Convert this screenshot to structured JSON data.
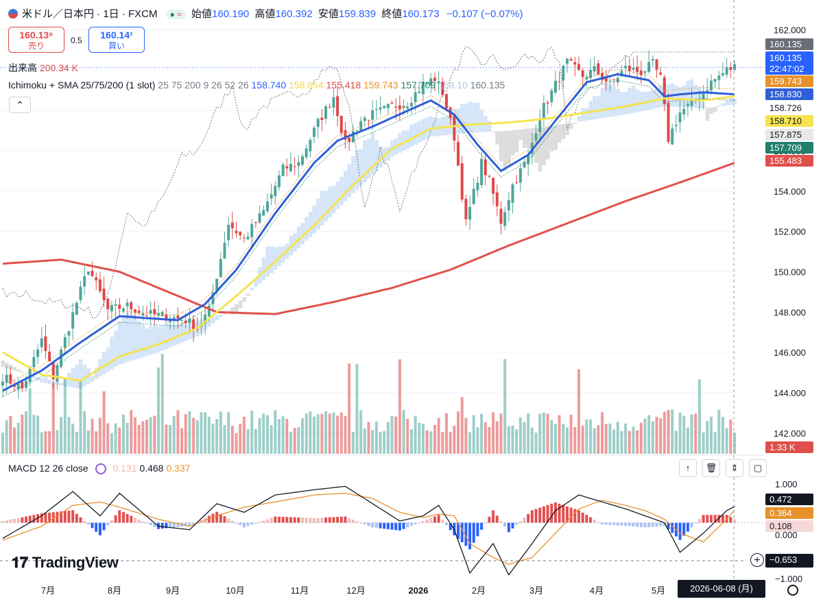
{
  "header": {
    "symbol": "米ドル／日本円 · 1日 · FXCM",
    "open_label": "始値",
    "open": "160.190",
    "high_label": "高値",
    "high": "160.392",
    "low_label": "安値",
    "low": "159.839",
    "close_label": "終値",
    "close": "160.173",
    "change": "−0.107 (−0.07%)"
  },
  "quote": {
    "sell_price": "160.13⁶",
    "sell_label": "売り",
    "spread": "0.5",
    "buy_price": "160.14¹",
    "buy_label": "買い"
  },
  "volume_legend": {
    "label": "出来高",
    "value": "200.34 K"
  },
  "indicator_legend": {
    "name": "Ichimoku + SMA 25/75/200 (1 slot)",
    "params": "25 75 200 9 26 52 26",
    "sma25": "158.740",
    "sma75": "158.654",
    "sma200": "155.418",
    "tenkan": "159.743",
    "kijun": "157.709",
    "spanA": "158.10",
    "chikou": "160.135"
  },
  "macd_legend": {
    "name": "MACD 12 26 close",
    "hist": "0.131",
    "macd": "0.468",
    "signal": "0.337"
  },
  "branding": {
    "logo": "TradingView"
  },
  "time_badge": "2026-06-08 (月)",
  "badges": {
    "last": "160.135",
    "price": "160.135",
    "countdown": "22:47:02",
    "tenkan": "159.743",
    "sma25": "158.830",
    "spanB": "158.726",
    "sma75": "158.710",
    "spanA": "157.875",
    "kijun": "157.709",
    "sma200": "155.483",
    "volume": "1.33 K",
    "macd": "0.472",
    "signal": "0.364",
    "hist": "0.108",
    "cross": "−0.653"
  },
  "colors": {
    "up": "#4ea69a",
    "down": "#e04848",
    "sma25": "#2f5fd8",
    "sma75": "#f5e34f",
    "sma200": "#e0504a",
    "tenkan": "#e8912b",
    "kijun": "#22806b",
    "cloud_up": "#cfe2f7",
    "cloud_dn": "#d8d8d8"
  },
  "chart_data": {
    "type": "candlestick",
    "title": "",
    "x_ticks": [
      "7月",
      "8月",
      "9月",
      "10月",
      "11月",
      "12月",
      "2026",
      "2月",
      "3月",
      "4月",
      "5月"
    ],
    "y_ticks": [
      "162.000",
      "160.000",
      "158.000",
      "156.000",
      "154.000",
      "152.000",
      "150.000",
      "148.000",
      "146.000",
      "144.000",
      "142.000"
    ],
    "ylim": [
      140.7,
      162.8
    ],
    "close_path": [
      [
        0,
        144.8
      ],
      [
        5,
        144.2
      ],
      [
        10,
        146.6
      ],
      [
        13,
        144.8
      ],
      [
        18,
        147.9
      ],
      [
        22,
        150.2
      ],
      [
        27,
        148.1
      ],
      [
        32,
        148.3
      ],
      [
        37,
        147.9
      ],
      [
        42,
        147.8
      ],
      [
        47,
        147.6
      ],
      [
        50,
        147.2
      ],
      [
        53,
        148.1
      ],
      [
        58,
        152.4
      ],
      [
        62,
        151.6
      ],
      [
        67,
        153.0
      ],
      [
        72,
        155.1
      ],
      [
        76,
        155.4
      ],
      [
        81,
        157.4
      ],
      [
        85,
        158.7
      ],
      [
        88,
        156.3
      ],
      [
        92,
        157.5
      ],
      [
        95,
        157.8
      ],
      [
        100,
        158.2
      ],
      [
        104,
        158.4
      ],
      [
        108,
        159.3
      ],
      [
        111,
        159.6
      ],
      [
        113,
        158.9
      ],
      [
        116,
        156.7
      ],
      [
        119,
        152.4
      ],
      [
        123,
        155.4
      ],
      [
        125,
        154.5
      ],
      [
        128,
        152.5
      ],
      [
        131,
        154.3
      ],
      [
        135,
        155.7
      ],
      [
        138,
        157.8
      ],
      [
        141,
        158.9
      ],
      [
        145,
        160.4
      ],
      [
        149,
        159.7
      ],
      [
        152,
        160.0
      ],
      [
        156,
        159.3
      ],
      [
        160,
        160.1
      ],
      [
        164,
        159.9
      ],
      [
        167,
        160.3
      ],
      [
        169,
        159.6
      ],
      [
        171,
        156.6
      ],
      [
        174,
        157.9
      ],
      [
        178,
        158.5
      ],
      [
        182,
        159.4
      ],
      [
        186,
        160.0
      ],
      [
        188,
        160.17
      ]
    ],
    "sma25_path": [
      [
        0,
        144.1
      ],
      [
        10,
        145.1
      ],
      [
        20,
        146.5
      ],
      [
        30,
        147.8
      ],
      [
        37,
        147.7
      ],
      [
        45,
        147.6
      ],
      [
        52,
        148.4
      ],
      [
        60,
        150.1
      ],
      [
        70,
        152.9
      ],
      [
        80,
        155.4
      ],
      [
        86,
        156.5
      ],
      [
        95,
        157.2
      ],
      [
        103,
        157.9
      ],
      [
        110,
        158.5
      ],
      [
        116,
        157.8
      ],
      [
        122,
        156.3
      ],
      [
        128,
        155.0
      ],
      [
        135,
        155.8
      ],
      [
        142,
        157.5
      ],
      [
        150,
        159.4
      ],
      [
        158,
        159.8
      ],
      [
        166,
        159.5
      ],
      [
        170,
        158.7
      ],
      [
        174,
        158.8
      ],
      [
        180,
        158.9
      ],
      [
        188,
        158.8
      ]
    ],
    "sma75_path": [
      [
        0,
        146.0
      ],
      [
        10,
        144.9
      ],
      [
        20,
        144.6
      ],
      [
        30,
        145.8
      ],
      [
        40,
        146.4
      ],
      [
        50,
        147.2
      ],
      [
        60,
        148.8
      ],
      [
        70,
        150.5
      ],
      [
        80,
        152.3
      ],
      [
        90,
        154.3
      ],
      [
        100,
        156.1
      ],
      [
        110,
        157.1
      ],
      [
        120,
        157.3
      ],
      [
        130,
        157.4
      ],
      [
        140,
        157.6
      ],
      [
        150,
        157.9
      ],
      [
        160,
        158.2
      ],
      [
        170,
        158.6
      ],
      [
        180,
        158.5
      ],
      [
        188,
        158.7
      ]
    ],
    "sma200_path": [
      [
        0,
        150.4
      ],
      [
        15,
        150.6
      ],
      [
        30,
        150.0
      ],
      [
        45,
        148.8
      ],
      [
        55,
        148.0
      ],
      [
        70,
        147.9
      ],
      [
        85,
        148.5
      ],
      [
        100,
        149.2
      ],
      [
        115,
        150.1
      ],
      [
        130,
        151.3
      ],
      [
        145,
        152.4
      ],
      [
        160,
        153.5
      ],
      [
        175,
        154.5
      ],
      [
        188,
        155.4
      ]
    ],
    "macd_line": [
      [
        0,
        -0.45
      ],
      [
        10,
        0.2
      ],
      [
        18,
        0.9
      ],
      [
        25,
        0.2
      ],
      [
        30,
        0.85
      ],
      [
        40,
        -0.1
      ],
      [
        48,
        -0.2
      ],
      [
        55,
        0.55
      ],
      [
        62,
        0.3
      ],
      [
        70,
        0.8
      ],
      [
        80,
        0.95
      ],
      [
        88,
        1.05
      ],
      [
        95,
        0.55
      ],
      [
        102,
        0.05
      ],
      [
        108,
        0.2
      ],
      [
        112,
        0.5
      ],
      [
        116,
        -0.2
      ],
      [
        120,
        -1.45
      ],
      [
        126,
        -0.6
      ],
      [
        130,
        -1.5
      ],
      [
        136,
        -0.6
      ],
      [
        142,
        0.35
      ],
      [
        148,
        0.8
      ],
      [
        154,
        0.6
      ],
      [
        160,
        0.4
      ],
      [
        165,
        0.2
      ],
      [
        170,
        0.0
      ],
      [
        174,
        -0.85
      ],
      [
        180,
        -0.3
      ],
      [
        186,
        0.35
      ],
      [
        188,
        0.47
      ]
    ],
    "signal_line": [
      [
        0,
        -0.5
      ],
      [
        10,
        -0.1
      ],
      [
        18,
        0.5
      ],
      [
        25,
        0.6
      ],
      [
        30,
        0.45
      ],
      [
        40,
        0.1
      ],
      [
        48,
        -0.1
      ],
      [
        55,
        0.2
      ],
      [
        62,
        0.45
      ],
      [
        70,
        0.6
      ],
      [
        80,
        0.8
      ],
      [
        88,
        0.85
      ],
      [
        95,
        0.7
      ],
      [
        102,
        0.3
      ],
      [
        108,
        0.15
      ],
      [
        112,
        0.25
      ],
      [
        116,
        0.2
      ],
      [
        120,
        -0.6
      ],
      [
        126,
        -1.0
      ],
      [
        130,
        -1.2
      ],
      [
        136,
        -1.0
      ],
      [
        142,
        -0.3
      ],
      [
        148,
        0.4
      ],
      [
        154,
        0.65
      ],
      [
        160,
        0.5
      ],
      [
        165,
        0.35
      ],
      [
        170,
        0.1
      ],
      [
        174,
        -0.3
      ],
      [
        180,
        -0.55
      ],
      [
        186,
        0.1
      ],
      [
        188,
        0.36
      ]
    ],
    "macd_ylim": [
      -1.0,
      1.0
    ]
  }
}
